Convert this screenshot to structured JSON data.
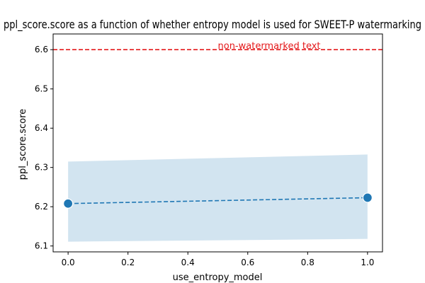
{
  "chart_data": {
    "type": "line",
    "title": "ppl_score.score as a function of whether entropy model is used for SWEET-P watermarking",
    "xlabel": "use_entropy_model",
    "ylabel": "ppl_score.score",
    "xlim": [
      -0.05,
      1.05
    ],
    "ylim": [
      6.085,
      6.64
    ],
    "x_ticks": [
      0.0,
      0.2,
      0.4,
      0.6,
      0.8,
      1.0
    ],
    "x_tick_labels": [
      "0.0",
      "0.2",
      "0.4",
      "0.6",
      "0.8",
      "1.0"
    ],
    "y_ticks": [
      6.1,
      6.2,
      6.3,
      6.4,
      6.5,
      6.6
    ],
    "y_tick_labels": [
      "6.1",
      "6.2",
      "6.3",
      "6.4",
      "6.5",
      "6.6"
    ],
    "grid": false,
    "series": [
      {
        "x": [
          0.0,
          1.0
        ],
        "values": [
          6.208,
          6.223
        ],
        "ci_lower": [
          6.111,
          6.118
        ],
        "ci_upper": [
          6.315,
          6.333
        ],
        "line_style": "dashed",
        "marker": "circle",
        "color": "#1f77b4",
        "band_color": "#1f77b4"
      }
    ],
    "reference_line": {
      "y": 6.6,
      "label": "non-watermarked text",
      "color": "#e41a1c",
      "line_style": "dashed"
    }
  }
}
